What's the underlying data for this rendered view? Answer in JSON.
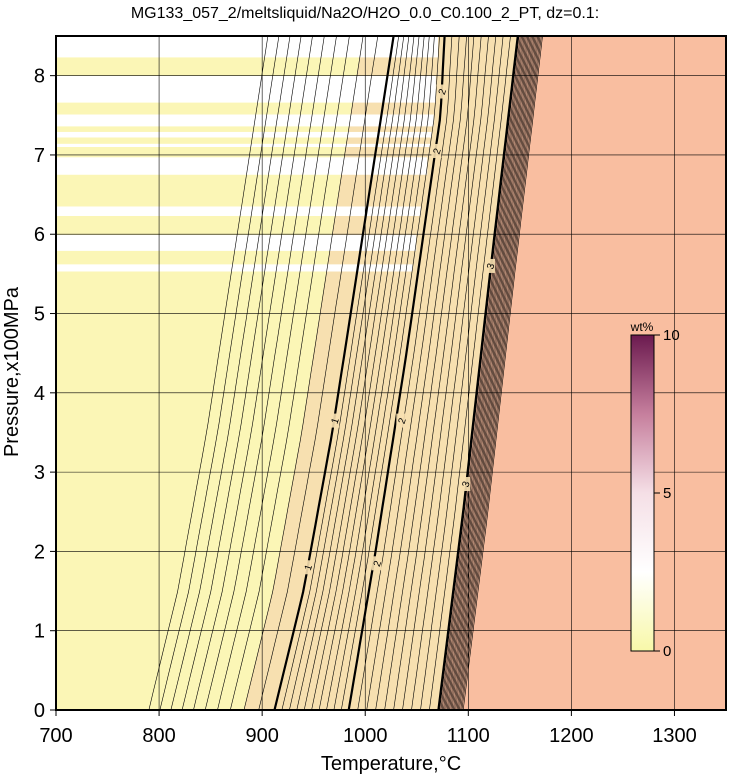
{
  "chart_data": {
    "type": "heatmap",
    "title": "MG133_057_2/meltsliquid/Na2O/H2O_0.0_C0.100_2_PT, dz=0.1:",
    "xlabel": "Temperature,°C",
    "ylabel": "Pressure,x100MPa",
    "xlim": [
      700,
      1350
    ],
    "ylim": [
      0,
      8.5
    ],
    "xticks": [
      "700",
      "800",
      "900",
      "1000",
      "1100",
      "1200",
      "1300"
    ],
    "yticks": [
      "0",
      "1",
      "2",
      "3",
      "4",
      "5",
      "6",
      "7",
      "8"
    ],
    "grid": true,
    "colorbar": {
      "unit": "wt%",
      "range": [
        0,
        10
      ],
      "ticks": [
        "0",
        "5",
        "10"
      ],
      "colors": [
        "#f8f8a8",
        "#ffffff",
        "#f5dfe6",
        "#c67f9d",
        "#6b1a4f"
      ]
    },
    "field_colors": {
      "low": "#fbf6b6",
      "mid": "#f7e0b0",
      "high": "#f9bea0"
    },
    "contour_interval": 0.1,
    "labeled_contours": [
      {
        "label": "1",
        "points": [
          [
            912,
            0
          ],
          [
            940,
            1.5
          ],
          [
            968,
            3.5
          ],
          [
            993,
            5.6
          ]
        ]
      },
      {
        "label": "2",
        "points": [
          [
            984,
            0
          ],
          [
            1010,
            2
          ],
          [
            1040,
            4.5
          ],
          [
            1073,
            7.5
          ],
          [
            1077,
            8.5
          ]
        ]
      },
      {
        "label": "3",
        "points": [
          [
            1071,
            0
          ],
          [
            1095,
            2.5
          ],
          [
            1121,
            5.5
          ],
          [
            1148,
            8.5
          ]
        ]
      }
    ],
    "label_positions": [
      {
        "text": "1",
        "x": 944,
        "y": 1.8
      },
      {
        "text": "1",
        "x": 970,
        "y": 3.65
      },
      {
        "text": "2",
        "x": 1011,
        "y": 1.85
      },
      {
        "text": "2",
        "x": 1035,
        "y": 3.65
      },
      {
        "text": "2",
        "x": 1069,
        "y": 7.05
      },
      {
        "text": "2",
        "x": 1074,
        "y": 7.8
      },
      {
        "text": "3",
        "x": 1097,
        "y": 2.85
      },
      {
        "text": "3",
        "x": 1121,
        "y": 5.6
      }
    ],
    "white_bands": [
      [
        5.53,
        5.62
      ],
      [
        5.79,
        5.99
      ],
      [
        6.23,
        6.35
      ],
      [
        6.75,
        6.97
      ],
      [
        7.1,
        7.14
      ],
      [
        7.22,
        7.29
      ],
      [
        7.36,
        7.51
      ],
      [
        7.66,
        8.0
      ],
      [
        8.23,
        8.5
      ]
    ]
  }
}
